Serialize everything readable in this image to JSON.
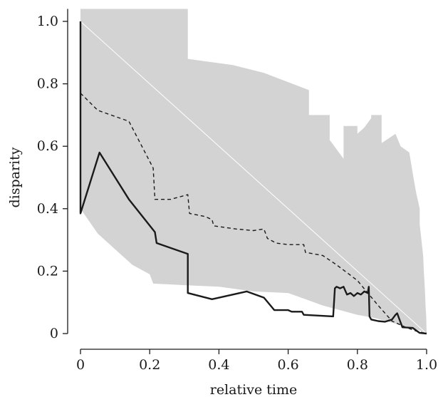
{
  "chart_data": {
    "type": "line",
    "title": "",
    "xlabel": "relative time",
    "ylabel": "disparity",
    "xlim": [
      -0.03,
      1.03
    ],
    "ylim": [
      -0.03,
      1.04
    ],
    "x_ticks": [
      0,
      0.2,
      0.4,
      0.6,
      0.8,
      1.0
    ],
    "x_tick_labels": [
      "0",
      "0.2",
      "0.4",
      "0.6",
      "0.8",
      "1.0"
    ],
    "y_ticks": [
      0,
      0.2,
      0.4,
      0.6,
      0.8,
      1.0
    ],
    "y_tick_labels": [
      "0",
      "0.2",
      "0.4",
      "0.6",
      "0.8",
      "1.0"
    ],
    "grid": false,
    "legend": "none",
    "series": [
      {
        "role": "envelope",
        "style": "band",
        "color": "#d3d3d3",
        "upper": [
          [
            0.0,
            1.04
          ],
          [
            0.31,
            1.04
          ],
          [
            0.31,
            0.88
          ],
          [
            0.44,
            0.86
          ],
          [
            0.53,
            0.835
          ],
          [
            0.66,
            0.78
          ],
          [
            0.66,
            0.7
          ],
          [
            0.72,
            0.7
          ],
          [
            0.72,
            0.62
          ],
          [
            0.76,
            0.56
          ],
          [
            0.76,
            0.665
          ],
          [
            0.8,
            0.665
          ],
          [
            0.8,
            0.64
          ],
          [
            0.82,
            0.66
          ],
          [
            0.84,
            0.69
          ],
          [
            0.84,
            0.7
          ],
          [
            0.87,
            0.7
          ],
          [
            0.87,
            0.61
          ],
          [
            0.91,
            0.64
          ],
          [
            0.925,
            0.6
          ],
          [
            0.95,
            0.58
          ],
          [
            0.962,
            0.5
          ],
          [
            0.97,
            0.45
          ],
          [
            0.98,
            0.4
          ],
          [
            0.98,
            0.35
          ],
          [
            0.985,
            0.3
          ],
          [
            0.99,
            0.25
          ],
          [
            0.992,
            0.2
          ],
          [
            0.995,
            0.14
          ],
          [
            0.997,
            0.09
          ],
          [
            0.999,
            0.05
          ],
          [
            1.0,
            0.0
          ]
        ],
        "lower": [
          [
            0.0,
            0.4
          ],
          [
            0.05,
            0.32
          ],
          [
            0.1,
            0.27
          ],
          [
            0.15,
            0.22
          ],
          [
            0.2,
            0.19
          ],
          [
            0.21,
            0.16
          ],
          [
            0.3,
            0.155
          ],
          [
            0.4,
            0.15
          ],
          [
            0.5,
            0.135
          ],
          [
            0.6,
            0.13
          ],
          [
            0.65,
            0.11
          ],
          [
            0.7,
            0.09
          ],
          [
            0.75,
            0.075
          ],
          [
            0.8,
            0.06
          ],
          [
            0.85,
            0.05
          ],
          [
            0.9,
            0.035
          ],
          [
            0.95,
            0.02
          ],
          [
            0.98,
            0.01
          ],
          [
            1.0,
            0.0
          ]
        ]
      },
      {
        "role": "reference",
        "style": "thin",
        "color": "#ffffff",
        "points": [
          [
            0.0,
            1.0
          ],
          [
            1.0,
            0.0
          ]
        ]
      },
      {
        "role": "dashed",
        "style": "dashed",
        "color": "#1a1a1a",
        "points": [
          [
            0.0,
            0.77
          ],
          [
            0.05,
            0.715
          ],
          [
            0.14,
            0.68
          ],
          [
            0.21,
            0.53
          ],
          [
            0.215,
            0.43
          ],
          [
            0.26,
            0.43
          ],
          [
            0.31,
            0.445
          ],
          [
            0.315,
            0.385
          ],
          [
            0.36,
            0.375
          ],
          [
            0.38,
            0.365
          ],
          [
            0.385,
            0.345
          ],
          [
            0.45,
            0.335
          ],
          [
            0.5,
            0.33
          ],
          [
            0.53,
            0.335
          ],
          [
            0.54,
            0.305
          ],
          [
            0.565,
            0.29
          ],
          [
            0.6,
            0.285
          ],
          [
            0.645,
            0.285
          ],
          [
            0.65,
            0.26
          ],
          [
            0.7,
            0.25
          ],
          [
            0.74,
            0.22
          ],
          [
            0.8,
            0.17
          ],
          [
            0.83,
            0.13
          ],
          [
            0.86,
            0.09
          ],
          [
            0.9,
            0.04
          ],
          [
            0.94,
            0.02
          ],
          [
            0.97,
            0.008
          ],
          [
            1.0,
            0.0
          ]
        ]
      },
      {
        "role": "solid",
        "style": "solid",
        "color": "#1a1a1a",
        "points": [
          [
            0.0,
            1.0
          ],
          [
            0.0,
            0.385
          ],
          [
            0.055,
            0.58
          ],
          [
            0.14,
            0.43
          ],
          [
            0.215,
            0.325
          ],
          [
            0.22,
            0.29
          ],
          [
            0.31,
            0.255
          ],
          [
            0.31,
            0.13
          ],
          [
            0.38,
            0.11
          ],
          [
            0.48,
            0.135
          ],
          [
            0.53,
            0.115
          ],
          [
            0.56,
            0.075
          ],
          [
            0.6,
            0.075
          ],
          [
            0.61,
            0.07
          ],
          [
            0.64,
            0.07
          ],
          [
            0.645,
            0.06
          ],
          [
            0.73,
            0.055
          ],
          [
            0.735,
            0.145
          ],
          [
            0.74,
            0.15
          ],
          [
            0.75,
            0.145
          ],
          [
            0.76,
            0.15
          ],
          [
            0.77,
            0.125
          ],
          [
            0.78,
            0.13
          ],
          [
            0.79,
            0.12
          ],
          [
            0.8,
            0.13
          ],
          [
            0.81,
            0.125
          ],
          [
            0.82,
            0.135
          ],
          [
            0.83,
            0.13
          ],
          [
            0.833,
            0.15
          ],
          [
            0.835,
            0.055
          ],
          [
            0.84,
            0.045
          ],
          [
            0.86,
            0.04
          ],
          [
            0.88,
            0.038
          ],
          [
            0.9,
            0.045
          ],
          [
            0.91,
            0.06
          ],
          [
            0.915,
            0.065
          ],
          [
            0.92,
            0.05
          ],
          [
            0.93,
            0.02
          ],
          [
            0.96,
            0.018
          ],
          [
            0.97,
            0.01
          ],
          [
            0.98,
            0.002
          ],
          [
            1.0,
            0.0
          ]
        ]
      }
    ]
  }
}
